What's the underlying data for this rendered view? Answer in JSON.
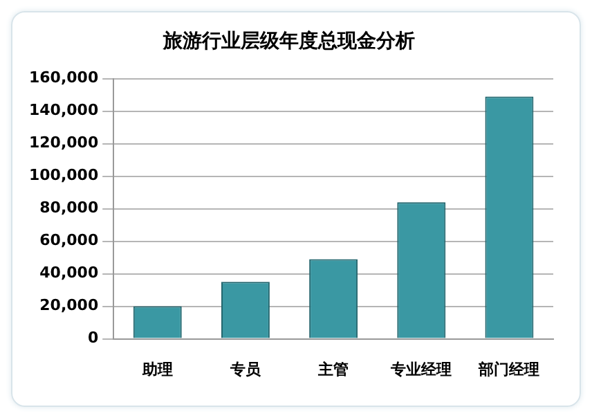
{
  "chart_data": {
    "type": "bar",
    "title": "旅游行业层级年度总现金分析",
    "categories": [
      "助理",
      "专员",
      "主管",
      "专业经理",
      "部门经理"
    ],
    "values": [
      20000,
      35000,
      49000,
      84000,
      149000
    ],
    "color": "#3a98a3",
    "ylim": [
      0,
      160000
    ],
    "yticks": [
      {
        "value": 0,
        "label": "0"
      },
      {
        "value": 20000,
        "label": "20,000"
      },
      {
        "value": 40000,
        "label": "40,000"
      },
      {
        "value": 60000,
        "label": "60,000"
      },
      {
        "value": 80000,
        "label": "80,000"
      },
      {
        "value": 100000,
        "label": "100,000"
      },
      {
        "value": 120000,
        "label": "120,000"
      },
      {
        "value": 140000,
        "label": "140,000"
      },
      {
        "value": 160000,
        "label": "160,000"
      }
    ],
    "grid": "y",
    "legend": false
  }
}
